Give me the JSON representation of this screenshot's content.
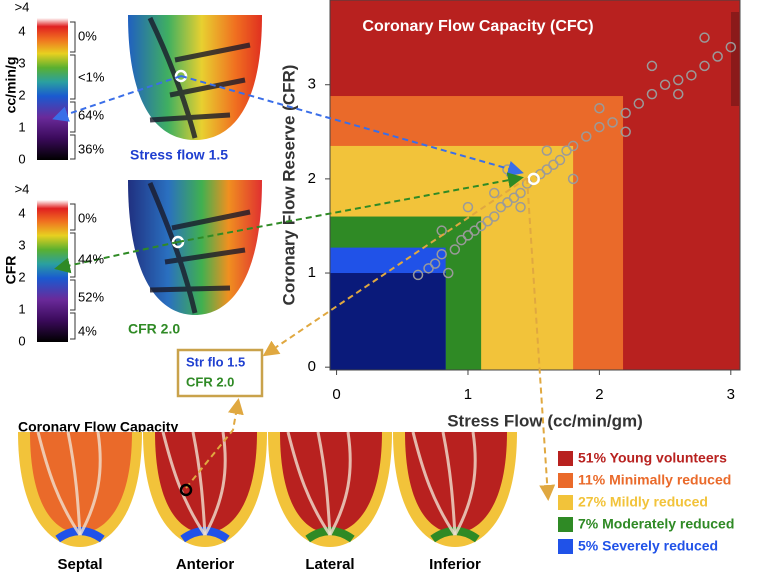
{
  "stress_panel": {
    "axis_label": "cc/min/g",
    "ticks": [
      ">4",
      "4",
      "3",
      "2",
      "1",
      "0"
    ],
    "percents": [
      "0%",
      "<1%",
      "64%",
      "36%"
    ],
    "caption": "Stress flow 1.5"
  },
  "cfr_panel": {
    "axis_label": "CFR",
    "ticks": [
      ">4",
      "4",
      "3",
      "2",
      "1",
      "0"
    ],
    "percents": [
      "0%",
      "44%",
      "52%",
      "4%"
    ],
    "caption": "CFR 2.0"
  },
  "callout": {
    "line1": "Str flo 1.5",
    "line2": "CFR 2.0"
  },
  "cfc_maps": {
    "title": "Coronary Flow Capacity",
    "views": [
      "Septal",
      "Anterior",
      "Lateral",
      "Inferior"
    ]
  },
  "chart_data": {
    "type": "scatter",
    "title": "Coronary Flow Capacity (CFC)",
    "x_label": "Stress Flow (cc/min/gm)",
    "y_label": "Coronary Flow Reserve (CFR)",
    "xlim": [
      -0.05,
      3.07
    ],
    "ylim": [
      -0.03,
      3.9
    ],
    "xticks": [
      0,
      1,
      2,
      3
    ],
    "yticks": [
      0,
      1,
      2,
      3
    ],
    "point_color": "#9a9a9a",
    "zones": [
      {
        "name": "51% Young volunteers",
        "color": "#b8211f"
      },
      {
        "name": "11% Minimally reduced",
        "color": "#ea6a2a",
        "x": 2.18,
        "y": 2.88
      },
      {
        "name": "27% Mildly reduced",
        "color": "#f2c33a",
        "x": 1.8,
        "y": 2.35
      },
      {
        "name": "7% Moderately reduced",
        "color": "#2f8a25",
        "x": 1.1,
        "y": 1.6
      },
      {
        "name": "5% Severely reduced",
        "color": "#2052e8",
        "x": 0.83,
        "y": 1.27
      },
      {
        "color": "#0a1a7a",
        "x": 0.83,
        "y": 1.0
      }
    ],
    "x": [
      0.62,
      0.7,
      0.75,
      0.8,
      0.9,
      0.95,
      1.0,
      1.05,
      1.1,
      1.15,
      1.2,
      1.25,
      1.3,
      1.35,
      1.4,
      1.45,
      1.5,
      1.55,
      1.6,
      1.65,
      1.7,
      1.75,
      1.8,
      1.9,
      2.0,
      2.1,
      2.2,
      2.3,
      2.4,
      2.5,
      2.6,
      2.7,
      2.8,
      2.9,
      3.0,
      1.0,
      1.2,
      1.4,
      1.6,
      1.8,
      2.0,
      2.2,
      2.4,
      2.6,
      2.8,
      0.8,
      1.3,
      0.85
    ],
    "values": [
      0.98,
      1.05,
      1.1,
      1.2,
      1.25,
      1.35,
      1.4,
      1.45,
      1.5,
      1.55,
      1.6,
      1.7,
      1.75,
      1.8,
      1.85,
      1.95,
      2.0,
      2.05,
      2.1,
      2.15,
      2.2,
      2.3,
      2.35,
      2.45,
      2.55,
      2.6,
      2.7,
      2.8,
      2.9,
      3.0,
      3.05,
      3.1,
      3.2,
      3.3,
      3.4,
      1.7,
      1.85,
      1.7,
      2.3,
      2.0,
      2.75,
      2.5,
      3.2,
      2.9,
      3.5,
      1.45,
      2.1,
      1.0
    ],
    "highlight": {
      "x": 1.5,
      "y": 2.0
    }
  }
}
